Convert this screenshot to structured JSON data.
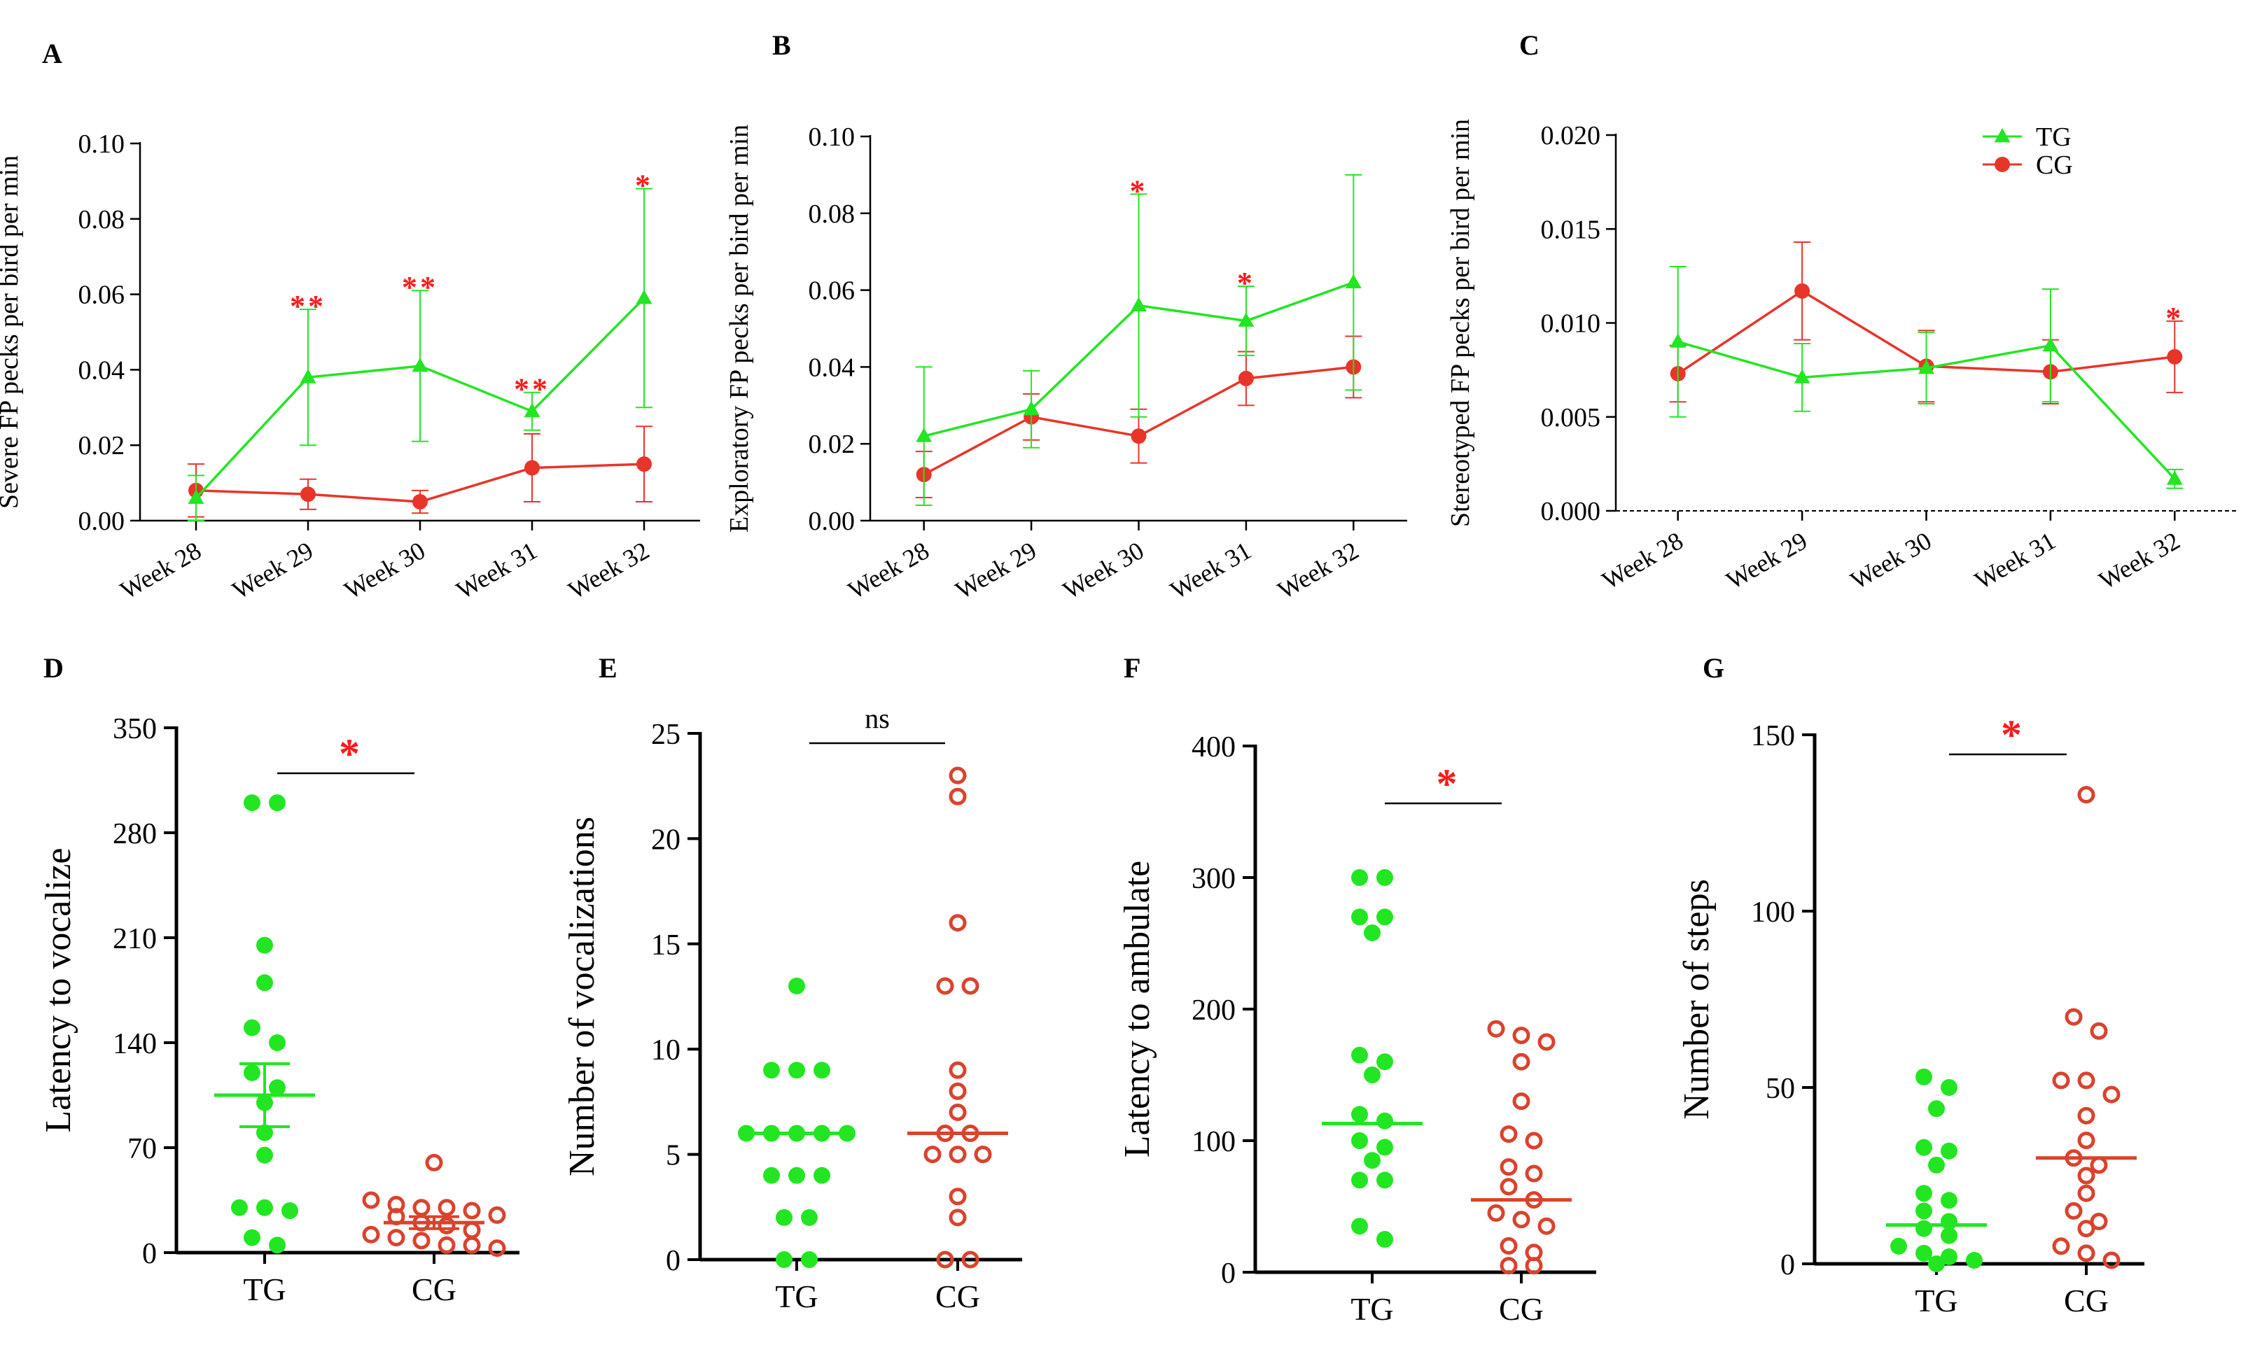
{
  "colors": {
    "tg": "#22e622",
    "cg": "#e8352a",
    "cg_scatter": "#d9432e",
    "sig": "#ff1a1a",
    "axis": "#000000"
  },
  "legend": {
    "tg": "TG",
    "cg": "CG"
  },
  "chart_data": [
    {
      "panel": "A",
      "type": "line",
      "ylabel": "Severe FP pecks per bird per min",
      "ylim": [
        0,
        0.1
      ],
      "yticks": [
        0,
        0.02,
        0.04,
        0.06,
        0.08,
        0.1
      ],
      "ytick_labels": [
        "0.00",
        "0.02",
        "0.04",
        "0.06",
        "0.08",
        "0.10"
      ],
      "categories": [
        "Week 28",
        "Week 29",
        "Week 30",
        "Week 31",
        "Week 32"
      ],
      "series": [
        {
          "name": "TG",
          "values": [
            0.006,
            0.038,
            0.041,
            0.029,
            0.059
          ],
          "err": [
            0.006,
            0.018,
            0.02,
            0.005,
            0.029
          ]
        },
        {
          "name": "CG",
          "values": [
            0.008,
            0.007,
            0.005,
            0.014,
            0.015
          ],
          "err": [
            0.007,
            0.004,
            0.003,
            0.009,
            0.01
          ]
        }
      ],
      "significance": [
        "",
        "**",
        "**",
        "**",
        "*"
      ]
    },
    {
      "panel": "B",
      "type": "line",
      "ylabel": "Exploratory FP pecks per bird per min",
      "ylim": [
        0,
        0.1
      ],
      "yticks": [
        0,
        0.02,
        0.04,
        0.06,
        0.08,
        0.1
      ],
      "ytick_labels": [
        "0.00",
        "0.02",
        "0.04",
        "0.06",
        "0.08",
        "0.10"
      ],
      "categories": [
        "Week 28",
        "Week 29",
        "Week 30",
        "Week 31",
        "Week 32"
      ],
      "series": [
        {
          "name": "TG",
          "values": [
            0.022,
            0.029,
            0.056,
            0.052,
            0.062
          ],
          "err": [
            0.018,
            0.01,
            0.029,
            0.009,
            0.028
          ]
        },
        {
          "name": "CG",
          "values": [
            0.012,
            0.027,
            0.022,
            0.037,
            0.04
          ],
          "err": [
            0.006,
            0.006,
            0.007,
            0.007,
            0.008
          ]
        }
      ],
      "significance": [
        "",
        "",
        "*",
        "*",
        ""
      ]
    },
    {
      "panel": "C",
      "type": "line",
      "ylabel": "Stereotyped FP pecks per bird per min",
      "ylim": [
        0,
        0.02
      ],
      "yticks": [
        0,
        0.005,
        0.01,
        0.015,
        0.02
      ],
      "ytick_labels": [
        "0.000",
        "0.005",
        "0.010",
        "0.015",
        "0.020"
      ],
      "categories": [
        "Week 28",
        "Week 29",
        "Week 30",
        "Week 31",
        "Week 32"
      ],
      "series": [
        {
          "name": "TG",
          "values": [
            0.009,
            0.0071,
            0.0076,
            0.0088,
            0.0017
          ],
          "err": [
            0.004,
            0.0018,
            0.0019,
            0.003,
            0.0005
          ]
        },
        {
          "name": "CG",
          "values": [
            0.0073,
            0.0117,
            0.0077,
            0.0074,
            0.0082
          ],
          "err": [
            0.0015,
            0.0026,
            0.0019,
            0.0017,
            0.0019
          ]
        }
      ],
      "significance": [
        "",
        "",
        "",
        "",
        "*"
      ],
      "legend_position": "top-right"
    },
    {
      "panel": "D",
      "type": "scatter",
      "ylabel": "Latency to vocalize",
      "ylim": [
        0,
        350
      ],
      "yticks": [
        0,
        70,
        140,
        210,
        280,
        350
      ],
      "ytick_labels": [
        "0",
        "70",
        "140",
        "210",
        "280",
        "350"
      ],
      "categories": [
        "TG",
        "CG"
      ],
      "series": [
        {
          "name": "TG",
          "values": [
            300,
            300,
            205,
            180,
            150,
            140,
            120,
            110,
            100,
            80,
            65,
            30,
            30,
            28,
            10,
            5
          ],
          "mean": 105,
          "sem": 21
        },
        {
          "name": "CG",
          "values": [
            60,
            35,
            32,
            30,
            30,
            28,
            25,
            24,
            20,
            18,
            15,
            12,
            10,
            8,
            5,
            5,
            3
          ],
          "mean": 20,
          "sem": 4
        }
      ],
      "comparison": "*"
    },
    {
      "panel": "E",
      "type": "scatter",
      "ylabel": "Number of vocalizations",
      "ylim": [
        0,
        25
      ],
      "yticks": [
        0,
        5,
        10,
        15,
        20,
        25
      ],
      "ytick_labels": [
        "0",
        "5",
        "10",
        "15",
        "20",
        "25"
      ],
      "categories": [
        "TG",
        "CG"
      ],
      "series": [
        {
          "name": "TG",
          "values": [
            13,
            9,
            9,
            9,
            6,
            6,
            6,
            6,
            6,
            4,
            4,
            4,
            2,
            2,
            0,
            0
          ],
          "median": 6
        },
        {
          "name": "CG",
          "values": [
            23,
            22,
            16,
            13,
            13,
            9,
            8,
            7,
            6,
            6,
            5,
            5,
            5,
            3,
            2,
            0,
            0
          ],
          "median": 6
        }
      ],
      "comparison": "ns"
    },
    {
      "panel": "F",
      "type": "scatter",
      "ylabel": "Latency to ambulate",
      "ylim": [
        0,
        400
      ],
      "yticks": [
        0,
        100,
        200,
        300,
        400
      ],
      "ytick_labels": [
        "0",
        "100",
        "200",
        "300",
        "400"
      ],
      "categories": [
        "TG",
        "CG"
      ],
      "series": [
        {
          "name": "TG",
          "values": [
            300,
            300,
            270,
            270,
            258,
            165,
            160,
            150,
            120,
            115,
            100,
            95,
            85,
            70,
            70,
            35,
            25
          ],
          "median": 113
        },
        {
          "name": "CG",
          "values": [
            185,
            180,
            175,
            160,
            130,
            105,
            100,
            80,
            75,
            65,
            55,
            45,
            40,
            35,
            20,
            15,
            5,
            5
          ],
          "median": 55
        }
      ],
      "comparison": "*"
    },
    {
      "panel": "G",
      "type": "scatter",
      "ylabel": "Number of steps",
      "ylim": [
        0,
        150
      ],
      "yticks": [
        0,
        50,
        100,
        150
      ],
      "ytick_labels": [
        "0",
        "50",
        "100",
        "150"
      ],
      "categories": [
        "TG",
        "CG"
      ],
      "series": [
        {
          "name": "TG",
          "values": [
            53,
            50,
            44,
            33,
            32,
            28,
            20,
            18,
            15,
            12,
            10,
            8,
            5,
            3,
            2,
            1,
            0
          ],
          "median": 11
        },
        {
          "name": "CG",
          "values": [
            133,
            70,
            66,
            52,
            52,
            48,
            42,
            35,
            30,
            28,
            25,
            20,
            15,
            12,
            10,
            5,
            3,
            1
          ],
          "median": 30
        }
      ],
      "comparison": "*"
    }
  ]
}
